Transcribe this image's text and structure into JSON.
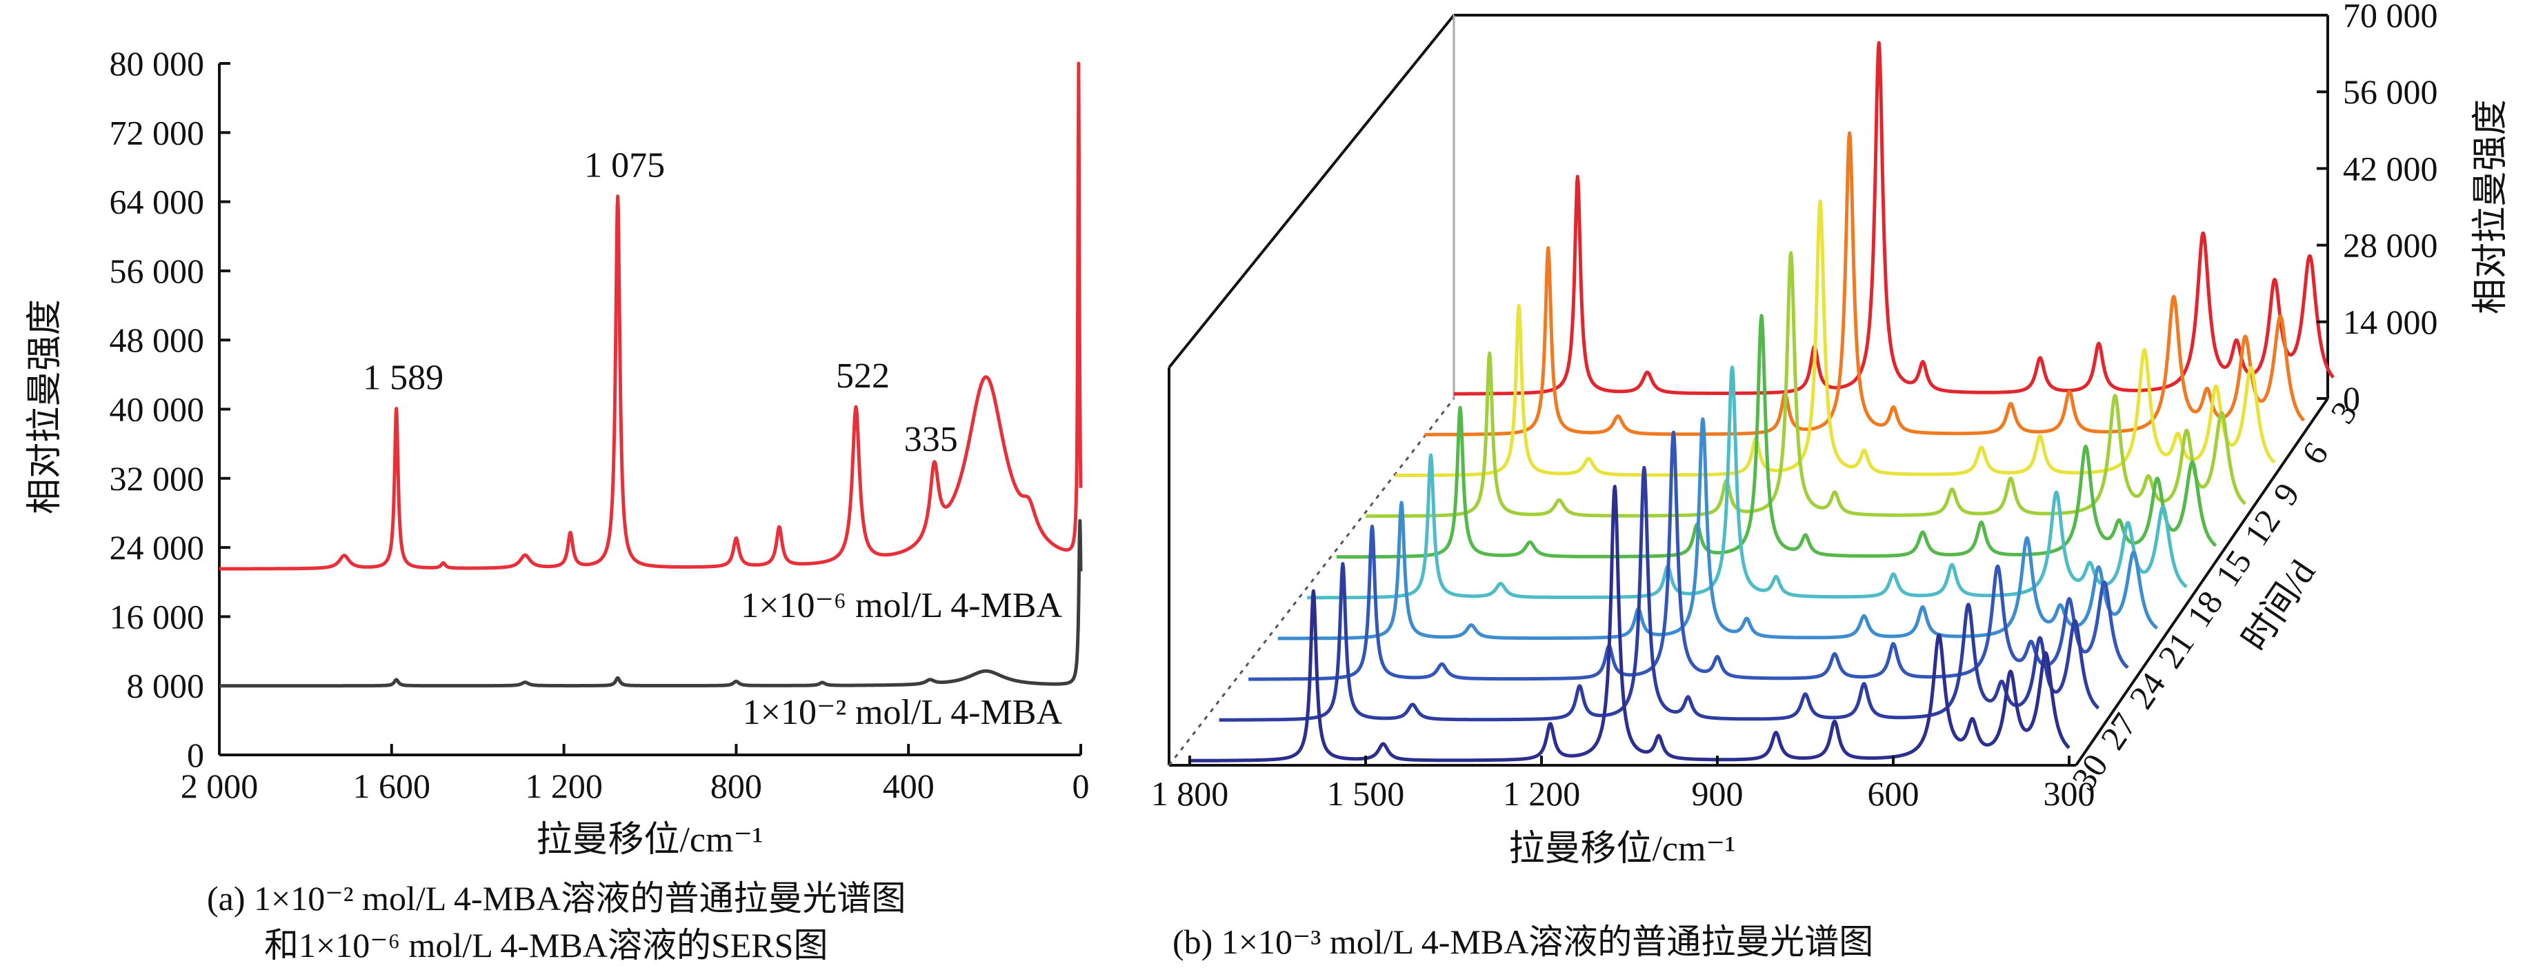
{
  "chart_data": [
    {
      "panel": "a",
      "type": "line",
      "caption_line1": "(a) 1×10⁻² mol/L 4-MBA溶液的普通拉曼光谱图",
      "caption_line2": "和1×10⁻⁶ mol/L 4-MBA溶液的SERS图",
      "xlabel": "拉曼移位/cm⁻¹",
      "ylabel": "相对拉曼强度",
      "xlim": [
        2000,
        0
      ],
      "ylim": [
        0,
        80000
      ],
      "xticks": [
        2000,
        1600,
        1200,
        800,
        400,
        0
      ],
      "xtick_labels": [
        "2 000",
        "1 600",
        "1 200",
        "800",
        "400",
        "0"
      ],
      "yticks": [
        0,
        8000,
        16000,
        24000,
        32000,
        40000,
        48000,
        56000,
        64000,
        72000,
        80000
      ],
      "ytick_labels": [
        "0",
        "8 000",
        "16 000",
        "24 000",
        "32 000",
        "40 000",
        "48 000",
        "56 000",
        "64 000",
        "72 000",
        "80 000"
      ],
      "peak_annotations": [
        {
          "x": 1589,
          "text": "1 589"
        },
        {
          "x": 1075,
          "text": "1 075"
        },
        {
          "x": 522,
          "text": "522"
        },
        {
          "x": 335,
          "text": "335"
        }
      ],
      "series": [
        {
          "name": "1×10⁻⁶ mol/L 4-MBA",
          "color": "#e8303a",
          "baseline": 21500,
          "peaks": [
            [
              1710,
              1500,
              14
            ],
            [
              1480,
              600,
              6
            ],
            [
              1290,
              1500,
              14
            ],
            [
              1589,
              18500,
              5
            ],
            [
              1185,
              4000,
              7
            ],
            [
              1075,
              43000,
              6
            ],
            [
              800,
              3300,
              8
            ],
            [
              700,
              4500,
              8
            ],
            [
              522,
              18000,
              10
            ],
            [
              340,
              8500,
              12
            ],
            [
              220,
              22000,
              55
            ],
            [
              120,
              3000,
              20
            ],
            [
              5,
              58000,
              2
            ]
          ]
        },
        {
          "name": "1×10⁻² mol/L 4-MBA",
          "color": "#3d3d3d",
          "baseline": 8000,
          "peaks": [
            [
              1589,
              700,
              6
            ],
            [
              1290,
              400,
              10
            ],
            [
              1075,
              900,
              6
            ],
            [
              800,
              500,
              8
            ],
            [
              600,
              350,
              8
            ],
            [
              350,
              500,
              12
            ],
            [
              220,
              1700,
              50
            ],
            [
              2,
              19000,
              3
            ]
          ]
        }
      ]
    },
    {
      "panel": "b",
      "type": "line",
      "caption": "(b) 1×10⁻³ mol/L 4-MBA溶液的普通拉曼光谱图",
      "xlabel": "拉曼移位/cm⁻¹",
      "ylabel": "相对拉曼强度",
      "zlabel": "时间/d",
      "xlim": [
        1800,
        300
      ],
      "zlim": [
        0,
        70000
      ],
      "xtick_labels": [
        "1 800",
        "1 500",
        "1 200",
        "900",
        "600",
        "300"
      ],
      "xticks": [
        1800,
        1500,
        1200,
        900,
        600,
        300
      ],
      "ztick_labels": [
        "0",
        "14 000",
        "28 000",
        "42 000",
        "56 000",
        "70 000"
      ],
      "zticks": [
        0,
        14000,
        28000,
        42000,
        56000,
        70000
      ],
      "time_ticks": [
        30,
        27,
        24,
        21,
        18,
        15,
        12,
        9,
        6,
        3
      ],
      "time_tick_labels": [
        "30",
        "27",
        "24",
        "21",
        "18",
        "15",
        "12",
        "9",
        "6",
        "3"
      ],
      "shared_peaks": [
        [
          1589,
          0.62,
          6
        ],
        [
          1470,
          0.06,
          10
        ],
        [
          1185,
          0.13,
          8
        ],
        [
          1075,
          1.0,
          8
        ],
        [
          1000,
          0.08,
          8
        ],
        [
          800,
          0.1,
          9
        ],
        [
          700,
          0.14,
          9
        ],
        [
          522,
          0.45,
          12
        ],
        [
          465,
          0.12,
          10
        ],
        [
          400,
          0.3,
          12
        ],
        [
          340,
          0.38,
          14
        ]
      ],
      "series": [
        {
          "name": "30",
          "color": "#2b2f8f",
          "amplitude": 50000
        },
        {
          "name": "27",
          "color": "#2e3da0",
          "amplitude": 46000
        },
        {
          "name": "24",
          "color": "#3357b8",
          "amplitude": 45000
        },
        {
          "name": "21",
          "color": "#3d8ccf",
          "amplitude": 40000
        },
        {
          "name": "18",
          "color": "#4dbcc7",
          "amplitude": 42000
        },
        {
          "name": "15",
          "color": "#55b84a",
          "amplitude": 44000
        },
        {
          "name": "12",
          "color": "#a0cf3a",
          "amplitude": 48000
        },
        {
          "name": "9",
          "color": "#e8e23a",
          "amplitude": 50000
        },
        {
          "name": "6",
          "color": "#ef7a22",
          "amplitude": 55000
        },
        {
          "name": "3",
          "color": "#e2262e",
          "amplitude": 64000
        }
      ]
    }
  ]
}
